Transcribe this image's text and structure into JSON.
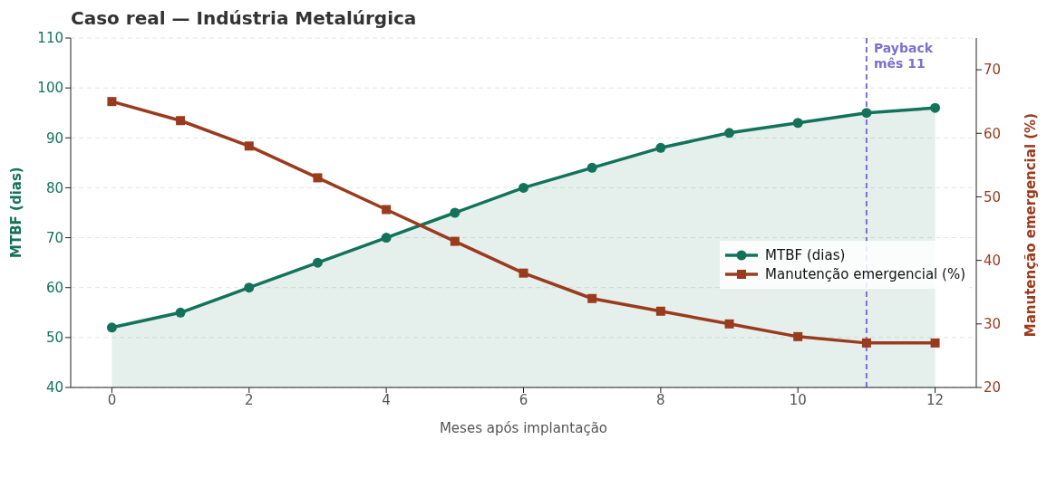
{
  "chart_data": {
    "type": "line",
    "title": "Caso real — Indústria Metalúrgica",
    "xlabel": "Meses após implantação",
    "ylabel": "MTBF (dias)",
    "y2label": "Manutenção emergencial (%)",
    "x": [
      0,
      1,
      2,
      3,
      4,
      5,
      6,
      7,
      8,
      9,
      10,
      11,
      12
    ],
    "series": [
      {
        "name": "MTBF (dias)",
        "type": "area",
        "color": "#13735a",
        "marker": "circle",
        "values": [
          52,
          55,
          60,
          65,
          70,
          75,
          80,
          84,
          88,
          91,
          93,
          95,
          96
        ]
      },
      {
        "name": "Manutenção emergencial (%)",
        "axis": "y2",
        "color": "#9a3b1e",
        "marker": "square",
        "values": [
          65,
          62,
          58,
          53,
          48,
          43,
          38,
          34,
          32,
          30,
          28,
          27,
          27
        ]
      }
    ],
    "xlim": [
      -0.6,
      12.6
    ],
    "xticks": [
      0,
      2,
      4,
      6,
      8,
      10,
      12
    ],
    "ylim": [
      40,
      110
    ],
    "yticks": [
      40,
      50,
      60,
      70,
      80,
      90,
      100,
      110
    ],
    "y2lim": [
      20,
      75
    ],
    "y2ticks": [
      20,
      30,
      40,
      50,
      60,
      70
    ],
    "ref_lines": [
      {
        "axis": "x",
        "value": 11,
        "label": "Payback\nmês 11",
        "color": "#7b6fd0",
        "line_style": "dashed"
      }
    ],
    "grid": "y",
    "legend": "right",
    "line_style": "solid"
  }
}
